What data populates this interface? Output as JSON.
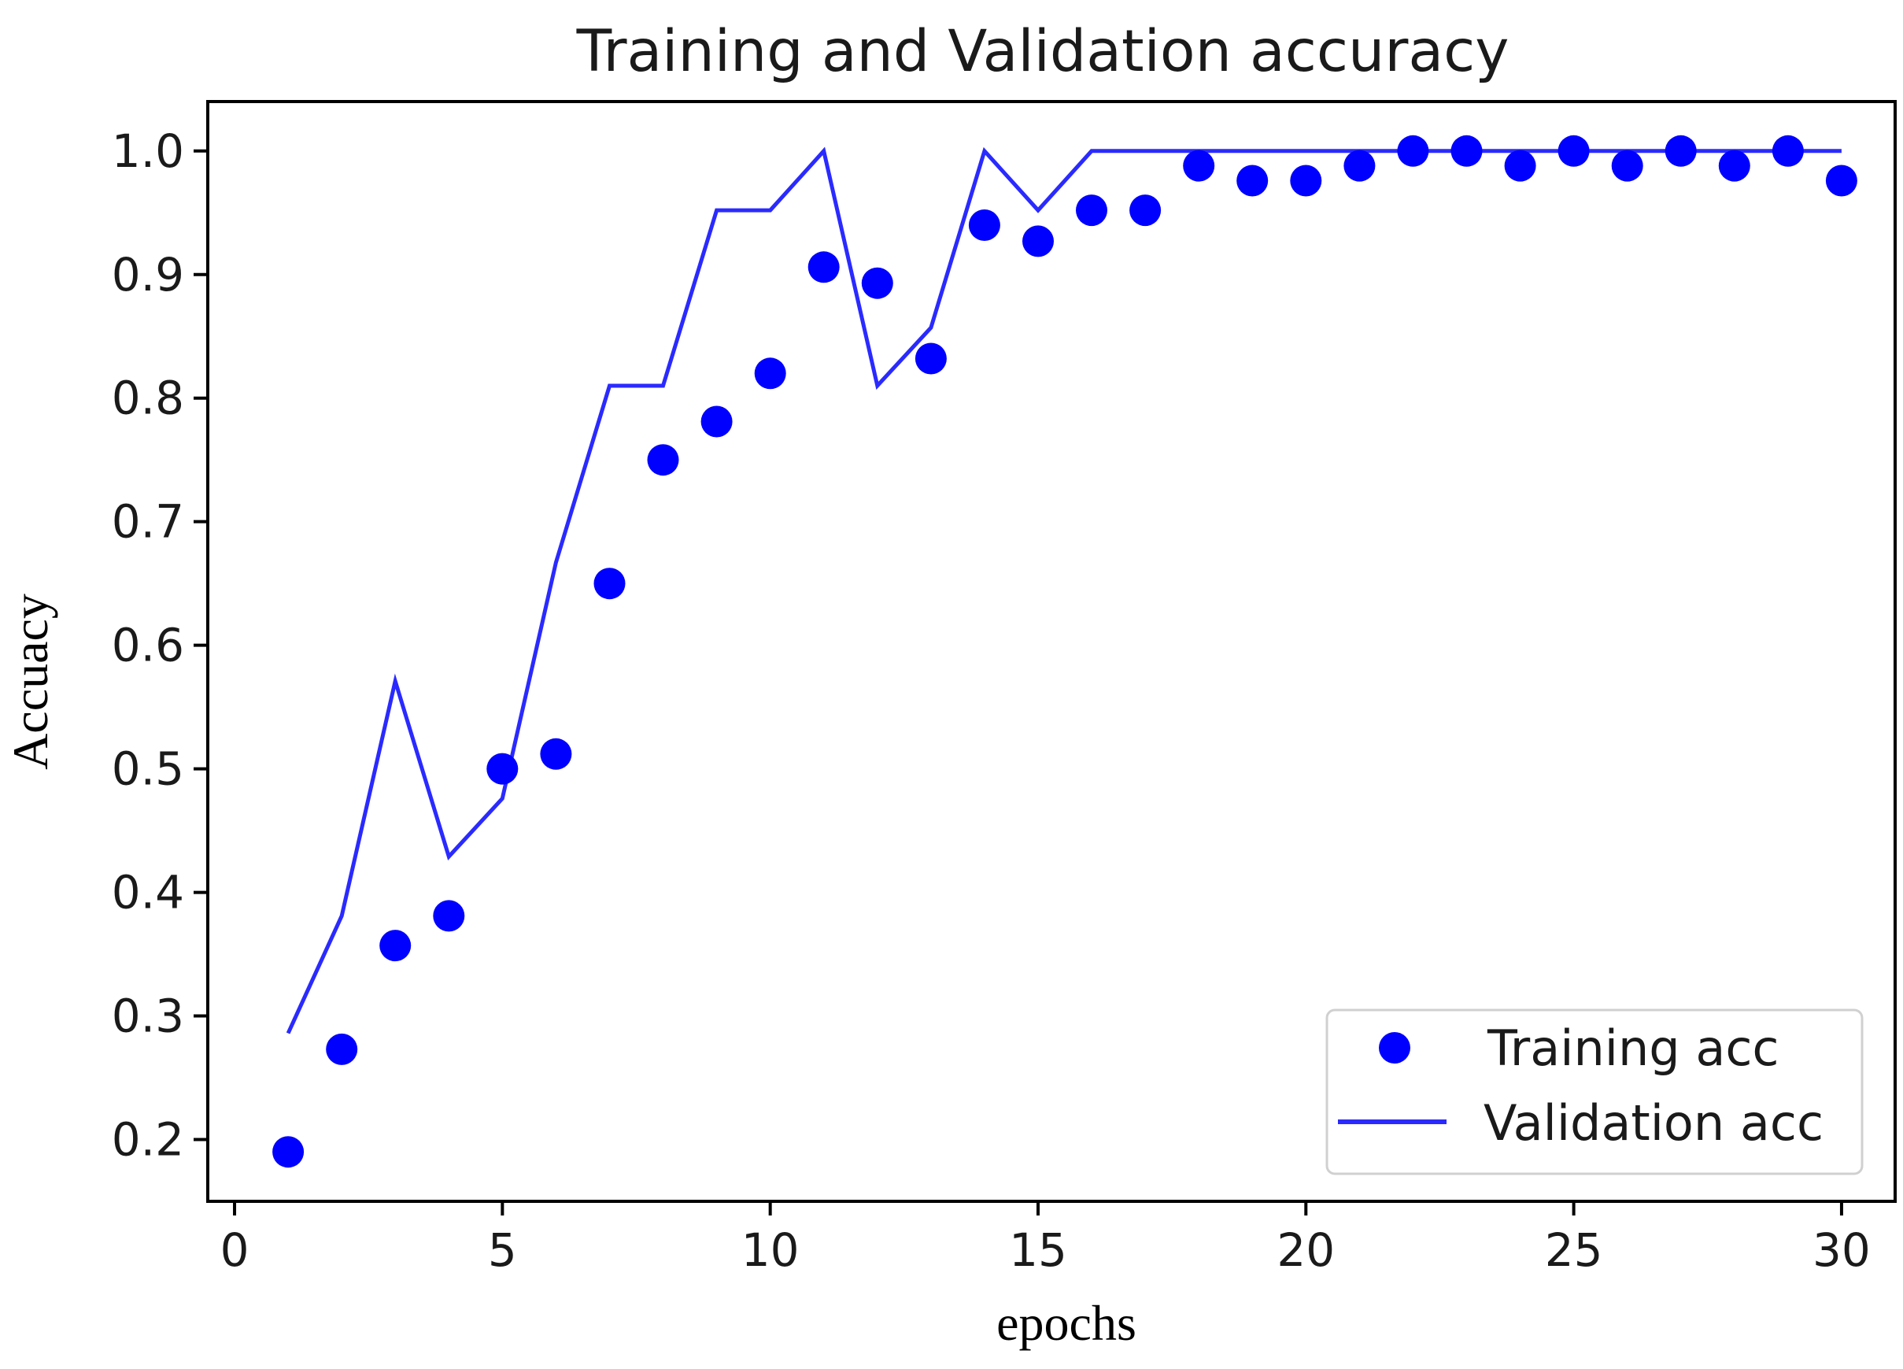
{
  "chart_data": {
    "type": "line",
    "title": "Training and Validation accuracy",
    "xlabel": "epochs",
    "ylabel": "Accuacy",
    "xlim": [
      -0.5,
      31.0
    ],
    "ylim": [
      0.15,
      1.04
    ],
    "xticks": [
      0,
      5,
      10,
      15,
      20,
      25,
      30
    ],
    "yticks": [
      0.2,
      0.3,
      0.4,
      0.5,
      0.6,
      0.7,
      0.8,
      0.9,
      1.0
    ],
    "ytick_labels": [
      "0.2",
      "0.3",
      "0.4",
      "0.5",
      "0.6",
      "0.7",
      "0.8",
      "0.9",
      "1.0"
    ],
    "xtick_labels": [
      "0",
      "5",
      "10",
      "15",
      "20",
      "25",
      "30"
    ],
    "grid": false,
    "legend_position": "bottom-right",
    "series": [
      {
        "name": "Training acc",
        "style": "markers",
        "color": "#0000ff",
        "x": [
          1,
          2,
          3,
          4,
          5,
          6,
          7,
          8,
          9,
          10,
          11,
          12,
          13,
          14,
          15,
          16,
          17,
          18,
          19,
          20,
          21,
          22,
          23,
          24,
          25,
          26,
          27,
          28,
          29,
          30
        ],
        "y": [
          0.19,
          0.273,
          0.357,
          0.381,
          0.5,
          0.512,
          0.65,
          0.75,
          0.781,
          0.82,
          0.906,
          0.893,
          0.832,
          0.94,
          0.927,
          0.952,
          0.952,
          0.988,
          0.976,
          0.976,
          0.988,
          1.0,
          1.0,
          0.988,
          1.0,
          0.988,
          1.0,
          0.988,
          1.0,
          0.976
        ]
      },
      {
        "name": "Validation acc",
        "style": "line",
        "color": "#2a2aff",
        "x": [
          1,
          2,
          3,
          4,
          5,
          6,
          7,
          8,
          9,
          10,
          11,
          12,
          13,
          14,
          15,
          16,
          17,
          18,
          19,
          20,
          21,
          22,
          23,
          24,
          25,
          26,
          27,
          28,
          29,
          30
        ],
        "y": [
          0.286,
          0.381,
          0.571,
          0.429,
          0.476,
          0.667,
          0.81,
          0.81,
          0.952,
          0.952,
          1.0,
          0.81,
          0.857,
          1.0,
          0.952,
          1.0,
          1.0,
          1.0,
          1.0,
          1.0,
          1.0,
          1.0,
          1.0,
          1.0,
          1.0,
          1.0,
          1.0,
          1.0,
          1.0,
          1.0
        ]
      }
    ]
  }
}
